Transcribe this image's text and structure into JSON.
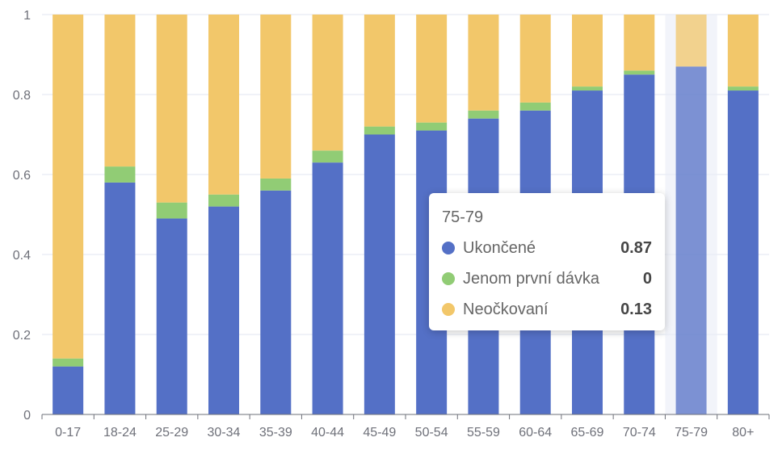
{
  "chart_data": {
    "type": "bar",
    "stacked": true,
    "categories": [
      "0-17",
      "18-24",
      "25-29",
      "30-34",
      "35-39",
      "40-44",
      "45-49",
      "50-54",
      "55-59",
      "60-64",
      "65-69",
      "70-74",
      "75-79",
      "80+"
    ],
    "series": [
      {
        "name": "Ukončené",
        "color": "#5470c6",
        "values": [
          0.12,
          0.58,
          0.49,
          0.52,
          0.56,
          0.63,
          0.7,
          0.71,
          0.74,
          0.76,
          0.81,
          0.85,
          0.87,
          0.81
        ]
      },
      {
        "name": "Jenom první dávka",
        "color": "#91cc75",
        "values": [
          0.02,
          0.04,
          0.04,
          0.03,
          0.03,
          0.03,
          0.02,
          0.02,
          0.02,
          0.02,
          0.01,
          0.01,
          0,
          0.01
        ]
      },
      {
        "name": "Neočkovaní",
        "color": "#f2c76a",
        "values": [
          0.86,
          0.38,
          0.47,
          0.45,
          0.41,
          0.34,
          0.28,
          0.27,
          0.24,
          0.22,
          0.18,
          0.14,
          0.13,
          0.18
        ]
      }
    ],
    "y_ticks": [
      "0",
      "0.2",
      "0.4",
      "0.6",
      "0.8",
      "1"
    ],
    "ylim": [
      0,
      1
    ],
    "grid": true,
    "highlighted_category": "75-79"
  },
  "tooltip": {
    "title": "75-79",
    "rows": [
      {
        "name": "Ukončené",
        "value": "0.87",
        "color": "#5470c6"
      },
      {
        "name": "Jenom první dávka",
        "value": "0",
        "color": "#91cc75"
      },
      {
        "name": "Neočkovaní",
        "value": "0.13",
        "color": "#f2c76a"
      }
    ]
  }
}
